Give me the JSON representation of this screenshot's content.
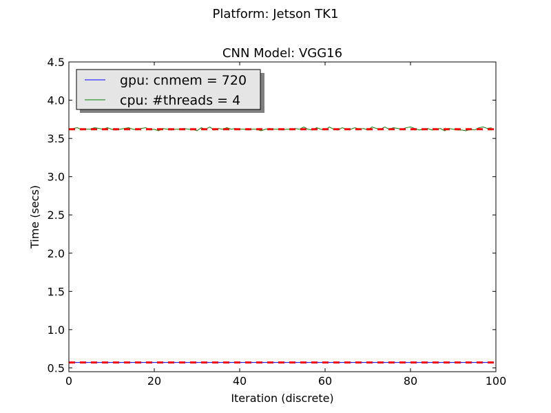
{
  "figure": {
    "suptitle": "Platform: Jetson TK1"
  },
  "chart_data": {
    "type": "line",
    "title": "CNN Model: VGG16",
    "xlabel": "Iteration (discrete)",
    "ylabel": "Time (secs)",
    "xlim": [
      0,
      100
    ],
    "ylim": [
      0.45,
      4.5
    ],
    "x_ticks": [
      0,
      20,
      40,
      60,
      80,
      100
    ],
    "y_ticks": [
      0.5,
      1.0,
      1.5,
      2.0,
      2.5,
      3.0,
      3.5,
      4.0,
      4.5
    ],
    "grid": false,
    "legend_position": "top-left",
    "series": [
      {
        "name": "gpu: cnmem = 720",
        "color": "#0000ff",
        "x_start": 0,
        "x_step": 1,
        "values": [
          0.57,
          0.57,
          0.57,
          0.57,
          0.57,
          0.57,
          0.57,
          0.57,
          0.57,
          0.57,
          0.57,
          0.57,
          0.57,
          0.57,
          0.57,
          0.57,
          0.57,
          0.57,
          0.57,
          0.57,
          0.57,
          0.57,
          0.57,
          0.57,
          0.57,
          0.57,
          0.57,
          0.57,
          0.57,
          0.57,
          0.57,
          0.57,
          0.57,
          0.57,
          0.57,
          0.57,
          0.57,
          0.57,
          0.57,
          0.57,
          0.57,
          0.57,
          0.57,
          0.57,
          0.57,
          0.57,
          0.57,
          0.57,
          0.57,
          0.57,
          0.57,
          0.57,
          0.57,
          0.57,
          0.57,
          0.57,
          0.57,
          0.57,
          0.57,
          0.57,
          0.57,
          0.57,
          0.57,
          0.57,
          0.57,
          0.57,
          0.57,
          0.57,
          0.57,
          0.57,
          0.57,
          0.57,
          0.57,
          0.57,
          0.57,
          0.57,
          0.57,
          0.57,
          0.57,
          0.57,
          0.57,
          0.57,
          0.57,
          0.57,
          0.57,
          0.57,
          0.57,
          0.57,
          0.57,
          0.57,
          0.57,
          0.57,
          0.57,
          0.57,
          0.57,
          0.57,
          0.57,
          0.57,
          0.57,
          0.57
        ]
      },
      {
        "name": "cpu: #threads = 4",
        "color": "#008000",
        "x_start": 0,
        "x_step": 1,
        "values": [
          3.61,
          3.63,
          3.64,
          3.61,
          3.62,
          3.62,
          3.64,
          3.63,
          3.62,
          3.64,
          3.62,
          3.61,
          3.62,
          3.63,
          3.64,
          3.62,
          3.61,
          3.63,
          3.64,
          3.61,
          3.62,
          3.6,
          3.63,
          3.62,
          3.61,
          3.62,
          3.62,
          3.63,
          3.62,
          3.62,
          3.6,
          3.64,
          3.62,
          3.65,
          3.61,
          3.63,
          3.62,
          3.64,
          3.62,
          3.63,
          3.62,
          3.62,
          3.61,
          3.62,
          3.62,
          3.6,
          3.62,
          3.63,
          3.62,
          3.62,
          3.61,
          3.62,
          3.62,
          3.63,
          3.62,
          3.65,
          3.62,
          3.61,
          3.64,
          3.62,
          3.61,
          3.65,
          3.62,
          3.61,
          3.64,
          3.62,
          3.62,
          3.64,
          3.62,
          3.63,
          3.61,
          3.65,
          3.63,
          3.62,
          3.65,
          3.62,
          3.64,
          3.63,
          3.62,
          3.64,
          3.65,
          3.63,
          3.61,
          3.62,
          3.63,
          3.61,
          3.62,
          3.63,
          3.6,
          3.63,
          3.62,
          3.61,
          3.61,
          3.6,
          3.62,
          3.61,
          3.64,
          3.65,
          3.63,
          3.64
        ]
      },
      {
        "name": "",
        "color": "#ff0000",
        "style": "dashed",
        "x": [
          0,
          100
        ],
        "values": [
          0.57,
          0.57
        ]
      },
      {
        "name": "",
        "color": "#ff0000",
        "style": "dashed",
        "x": [
          0,
          100
        ],
        "values": [
          3.62,
          3.62
        ]
      }
    ]
  }
}
